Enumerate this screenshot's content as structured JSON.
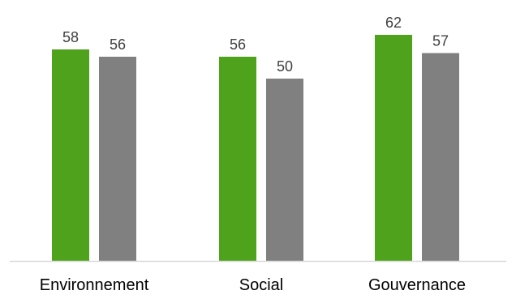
{
  "chart_data": {
    "type": "bar",
    "title": "",
    "xlabel": "",
    "ylabel": "",
    "categories": [
      "Environnement",
      "Social",
      "Gouvernance"
    ],
    "series": [
      {
        "color": "#4ea21c",
        "values": [
          58,
          56,
          62
        ]
      },
      {
        "color": "#808080",
        "values": [
          56,
          50,
          57
        ]
      }
    ],
    "ylim": [
      0,
      65
    ],
    "grid": false,
    "legend": "none",
    "data_labels": true
  }
}
